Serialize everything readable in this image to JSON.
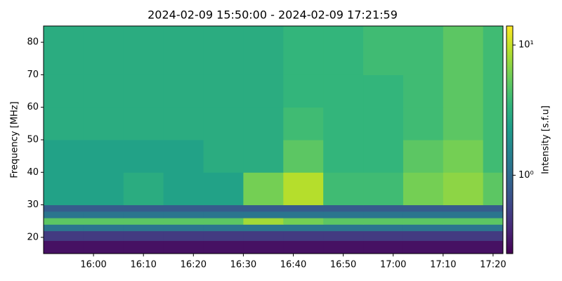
{
  "chart_data": {
    "type": "heatmap",
    "title": "2024-02-09 15:50:00 - 2024-02-09 17:21:59",
    "ylabel": "Frequency [MHz]",
    "colorbar_label": "Intensity [s.f.u]",
    "colormap": "viridis",
    "color_scale": "log",
    "xlim": [
      "15:50:00",
      "17:21:59"
    ],
    "xticks": [
      "16:00",
      "16:10",
      "16:20",
      "16:30",
      "16:40",
      "16:50",
      "17:00",
      "17:10",
      "17:20"
    ],
    "ylim": [
      15,
      85
    ],
    "yticks": [
      20,
      30,
      40,
      50,
      60,
      70,
      80
    ],
    "clim": [
      0.25,
      14
    ],
    "cticks": [
      {
        "value": 1,
        "label": "10⁰"
      },
      {
        "value": 10,
        "label": "10¹"
      }
    ],
    "x_edges": [
      "15:50",
      "15:58",
      "16:06",
      "16:14",
      "16:22",
      "16:30",
      "16:38",
      "16:46",
      "16:54",
      "17:02",
      "17:10",
      "17:18",
      "17:22"
    ],
    "y_edges": [
      15,
      19,
      22,
      24,
      26,
      28,
      30,
      40,
      50,
      60,
      70,
      85
    ],
    "values": [
      [
        0.3,
        0.3,
        0.3,
        0.3,
        0.3,
        0.3,
        0.3,
        0.3,
        0.3,
        0.3,
        0.3,
        0.3
      ],
      [
        0.5,
        0.5,
        0.5,
        0.5,
        0.5,
        0.5,
        0.5,
        0.5,
        0.5,
        0.5,
        0.5,
        0.5
      ],
      [
        1.2,
        1.2,
        1.2,
        1.2,
        1.2,
        1.2,
        1.2,
        1.2,
        1.2,
        1.2,
        1.2,
        1.2
      ],
      [
        5,
        5,
        5,
        5,
        5,
        8,
        6,
        5,
        5,
        5,
        5,
        5
      ],
      [
        1.2,
        1.2,
        1.2,
        1.2,
        1.2,
        1.2,
        1.2,
        1.2,
        1.2,
        1.2,
        1.2,
        1.2
      ],
      [
        0.8,
        0.8,
        0.8,
        0.8,
        0.8,
        0.8,
        0.8,
        0.8,
        0.8,
        0.8,
        0.8,
        0.8
      ],
      [
        2.5,
        2.5,
        3,
        2.5,
        2.5,
        6,
        9,
        4,
        4,
        6,
        7,
        5
      ],
      [
        2.5,
        2.5,
        2.5,
        2.5,
        3,
        3,
        5,
        3.5,
        3.5,
        5,
        6,
        4
      ],
      [
        3,
        3,
        3,
        3,
        3,
        3,
        4,
        3.5,
        3.5,
        4,
        5,
        4
      ],
      [
        3,
        3,
        3,
        3,
        3,
        3,
        3.5,
        3.5,
        3.5,
        4,
        5,
        4
      ],
      [
        3,
        3,
        3,
        3,
        3,
        3,
        3.5,
        3.5,
        4,
        4,
        5,
        4
      ]
    ]
  }
}
